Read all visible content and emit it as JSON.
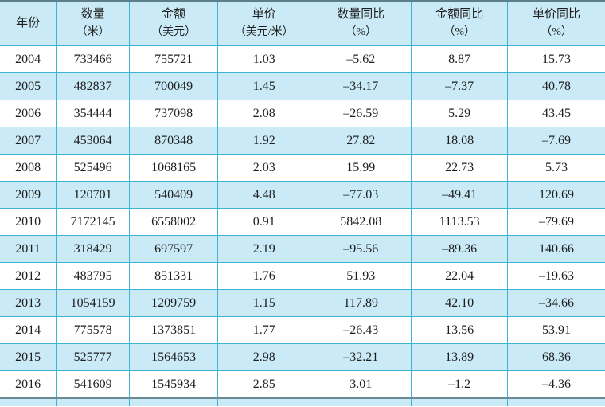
{
  "chart_data": {
    "type": "table",
    "columns": [
      {
        "key": "year",
        "line1": "年份",
        "line2": ""
      },
      {
        "key": "quantity-m",
        "line1": "数量",
        "line2": "（米）"
      },
      {
        "key": "amount-usd",
        "line1": "金额",
        "line2": "（美元）"
      },
      {
        "key": "unit-price",
        "line1": "单价",
        "line2": "（美元/米）"
      },
      {
        "key": "quantity-yoy",
        "line1": "数量同比",
        "line2": "（%）"
      },
      {
        "key": "amount-yoy",
        "line1": "金额同比",
        "line2": "（%）"
      },
      {
        "key": "unit-price-yoy",
        "line1": "单价同比",
        "line2": "（%）"
      }
    ],
    "rows": [
      [
        "2004",
        "733466",
        "755721",
        "1.03",
        "–5.62",
        "8.87",
        "15.73"
      ],
      [
        "2005",
        "482837",
        "700049",
        "1.45",
        "–34.17",
        "–7.37",
        "40.78"
      ],
      [
        "2006",
        "354444",
        "737098",
        "2.08",
        "–26.59",
        "5.29",
        "43.45"
      ],
      [
        "2007",
        "453064",
        "870348",
        "1.92",
        "27.82",
        "18.08",
        "–7.69"
      ],
      [
        "2008",
        "525496",
        "1068165",
        "2.03",
        "15.99",
        "22.73",
        "5.73"
      ],
      [
        "2009",
        "120701",
        "540409",
        "4.48",
        "–77.03",
        "–49.41",
        "120.69"
      ],
      [
        "2010",
        "7172145",
        "6558002",
        "0.91",
        "5842.08",
        "1113.53",
        "–79.69"
      ],
      [
        "2011",
        "318429",
        "697597",
        "2.19",
        "–95.56",
        "–89.36",
        "140.66"
      ],
      [
        "2012",
        "483795",
        "851331",
        "1.76",
        "51.93",
        "22.04",
        "–19.63"
      ],
      [
        "2013",
        "1054159",
        "1209759",
        "1.15",
        "117.89",
        "42.10",
        "–34.66"
      ],
      [
        "2014",
        "775578",
        "1373851",
        "1.77",
        "–26.43",
        "13.56",
        "53.91"
      ],
      [
        "2015",
        "525777",
        "1564653",
        "2.98",
        "–32.21",
        "13.89",
        "68.36"
      ],
      [
        "2016",
        "541609",
        "1545934",
        "2.85",
        "3.01",
        "–1.2",
        "–4.36"
      ]
    ],
    "numeric": {
      "years": [
        2004,
        2005,
        2006,
        2007,
        2008,
        2009,
        2010,
        2011,
        2012,
        2013,
        2014,
        2015,
        2016
      ],
      "quantity_m": [
        733466,
        482837,
        354444,
        453064,
        525496,
        120701,
        7172145,
        318429,
        483795,
        1054159,
        775578,
        525777,
        541609
      ],
      "amount_usd": [
        755721,
        700049,
        737098,
        870348,
        1068165,
        540409,
        6558002,
        697597,
        851331,
        1209759,
        1373851,
        1564653,
        1545934
      ],
      "unit_price_usd_per_m": [
        1.03,
        1.45,
        2.08,
        1.92,
        2.03,
        4.48,
        0.91,
        2.19,
        1.76,
        1.15,
        1.77,
        2.98,
        2.85
      ],
      "quantity_yoy_pct": [
        -5.62,
        -34.17,
        -26.59,
        27.82,
        15.99,
        -77.03,
        5842.08,
        -95.56,
        51.93,
        117.89,
        -26.43,
        -32.21,
        3.01
      ],
      "amount_yoy_pct": [
        8.87,
        -7.37,
        5.29,
        18.08,
        22.73,
        -49.41,
        1113.53,
        -89.36,
        22.04,
        42.1,
        13.56,
        13.89,
        -1.2
      ],
      "unit_price_yoy_pct": [
        15.73,
        40.78,
        43.45,
        -7.69,
        5.73,
        120.69,
        -79.69,
        140.66,
        -19.63,
        -34.66,
        53.91,
        68.36,
        -4.36
      ]
    },
    "layout_hints": {
      "grid": true,
      "alternating_row_fill": true,
      "header_rows": 1
    }
  },
  "colors": {
    "row_alt_fill": "#cbeaf7",
    "grid_line": "#3cb4d6",
    "outer_top_line": "#5d7f89",
    "text": "#1e1e1e",
    "background": "#ffffff"
  }
}
